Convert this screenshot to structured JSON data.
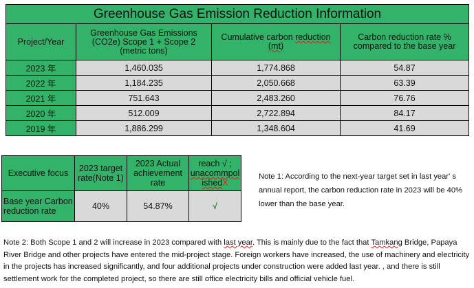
{
  "main_table": {
    "title": "Greenhouse Gas Emission Reduction Information",
    "headers": {
      "project_year": "Project/Year",
      "emissions": "Greenhouse Gas Emissions (CO2e) Scope 1 + Scope 2 (metric tons)",
      "cumulative_prefix": "Cumulative carbon ",
      "cumulative_underlined": "reduction",
      "cumulative_unit": "(mt)",
      "rate": "Carbon reduction rate % compared to the base year"
    },
    "rows": [
      {
        "year": "2023 年",
        "emissions": "1,460.035",
        "cumulative": "1,774.868",
        "rate": "54.87"
      },
      {
        "year": "2022 年",
        "emissions": "1,184.235",
        "cumulative": "2,050.668",
        "rate": "63.39"
      },
      {
        "year": "2021 年",
        "emissions": "751.643",
        "cumulative": "2,483.260",
        "rate": "76.76"
      },
      {
        "year": "2020 年",
        "emissions": "512.009",
        "cumulative": "2,722.894",
        "rate": "84.17"
      },
      {
        "year": "2019 年",
        "emissions": "1,886.299",
        "cumulative": "1,348.604",
        "rate": "41.69"
      }
    ]
  },
  "exec_table": {
    "headers": {
      "focus": "Executive focus",
      "target": "2023 target rate(Note 1)",
      "actual": "2023 Actual achievement rate",
      "reach_line1": "reach √ ;",
      "reach_line2": "unacommpol",
      "reach_line3_a": "ished",
      "reach_line3_x": "X"
    },
    "row": {
      "label": "Base year Carbon reduction rate",
      "target": "40%",
      "actual": "54.87%",
      "reach": "√"
    }
  },
  "note1": "Note 1: According to the next-year target set in last year' s annual report, the carbon reduction rate in 2023 will be 40% lower than the base year.",
  "note2": {
    "part1": "Note 2: Both Scope 1 and 2 will increase in 2023 compared with ",
    "lastyear": "last year",
    "part2": ". This is mainly due to the fact that ",
    "tamkang": "Tamkang",
    "part3": " Bridge, Papaya River Bridge and other projects have entered the mid-project stage. Foreign workers have increased, the use of machinery and electricity in the projects has increased significantly, and four additional projects under construction were added last year. , and there is still settlement work for the completed project, so there are still office electricity bills and official vehicle fuel."
  },
  "colors": {
    "header_green": "#33b36a",
    "cell_gray": "#d9d9d9",
    "check_green": "#1a8a2a",
    "x_red": "#e0201c"
  }
}
